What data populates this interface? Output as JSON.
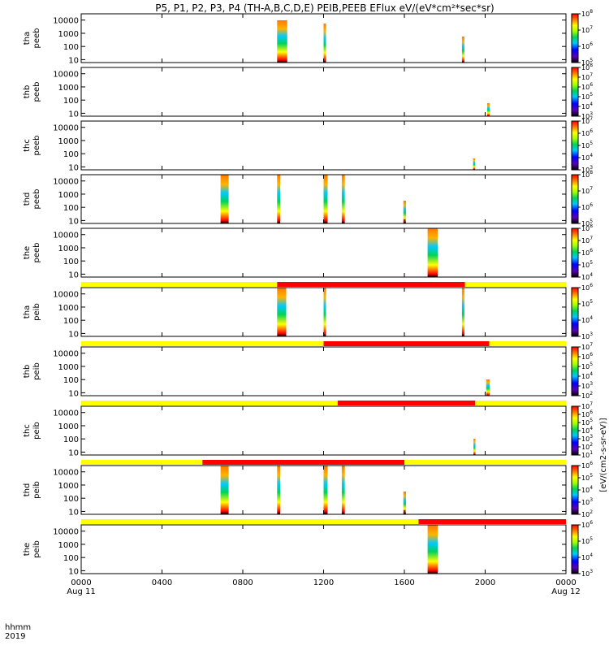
{
  "chart_data": {
    "type": "heatmap",
    "title": "P5, P1, P2, P3, P4 (TH-A,B,C,D,E) PEIB,PEEB EFlux eV/(eV*cm²*sec*sr)",
    "x_axis": {
      "label_line1": "hhmm",
      "label_line2": "2019",
      "range_hours": [
        0,
        24
      ],
      "ticks": [
        {
          "hour": 0,
          "label": "0000",
          "sublabel": "Aug 11"
        },
        {
          "hour": 4,
          "label": "0400",
          "sublabel": ""
        },
        {
          "hour": 8,
          "label": "0800",
          "sublabel": ""
        },
        {
          "hour": 12,
          "label": "1200",
          "sublabel": ""
        },
        {
          "hour": 16,
          "label": "1600",
          "sublabel": ""
        },
        {
          "hour": 20,
          "label": "2000",
          "sublabel": ""
        },
        {
          "hour": 24,
          "label": "0000",
          "sublabel": "Aug 12"
        }
      ]
    },
    "y_axis": {
      "scale": "log",
      "range_eV": [
        6,
        30000
      ],
      "ticks": [
        {
          "value": 10,
          "label": "10"
        },
        {
          "value": 100,
          "label": "100"
        },
        {
          "value": 1000,
          "label": "1000"
        },
        {
          "value": 10000,
          "label": "10000"
        }
      ]
    },
    "colorbar_unit": "[eV/(cm2-s-sr-eV)]",
    "panels": [
      {
        "probe": "tha",
        "species": "peeb",
        "cbar_min_exp": 5,
        "cbar_max_exp": 8,
        "bursts": [
          {
            "start": 9.7,
            "end": 10.2,
            "hi": 26
          },
          {
            "start": 12.0,
            "end": 12.12,
            "hi": 24
          },
          {
            "start": 18.85,
            "end": 18.97,
            "hi": 16
          }
        ]
      },
      {
        "probe": "thb",
        "species": "peeb",
        "cbar_min_exp": 3,
        "cbar_max_exp": 8,
        "bursts": [
          {
            "start": 20.1,
            "end": 20.22,
            "hi": 8
          }
        ]
      },
      {
        "probe": "thc",
        "species": "peeb",
        "cbar_min_exp": 3,
        "cbar_max_exp": 7,
        "bursts": [
          {
            "start": 19.4,
            "end": 19.5,
            "hi": 7
          }
        ]
      },
      {
        "probe": "thd",
        "species": "peeb",
        "cbar_min_exp": 5,
        "cbar_max_exp": 8,
        "bursts": [
          {
            "start": 6.9,
            "end": 7.3,
            "hi": 30
          },
          {
            "start": 9.7,
            "end": 9.85,
            "hi": 30
          },
          {
            "start": 12.0,
            "end": 12.2,
            "hi": 30
          },
          {
            "start": 12.9,
            "end": 13.05,
            "hi": 30
          },
          {
            "start": 15.95,
            "end": 16.08,
            "hi": 14
          }
        ]
      },
      {
        "probe": "the",
        "species": "peeb",
        "cbar_min_exp": 4,
        "cbar_max_exp": 8,
        "bursts": [
          {
            "start": 17.15,
            "end": 17.65,
            "hi": 30
          }
        ]
      },
      {
        "probe": "tha",
        "species": "peib",
        "cbar_min_exp": 3,
        "cbar_max_exp": 6,
        "bursts": [
          {
            "start": 9.7,
            "end": 10.15,
            "hi": 30
          },
          {
            "start": 12.0,
            "end": 12.12,
            "hi": 30
          },
          {
            "start": 18.85,
            "end": 18.97,
            "hi": 30
          }
        ],
        "mode_segments": [
          {
            "start": 0,
            "end": 9.7,
            "mode": "slow"
          },
          {
            "start": 9.7,
            "end": 19.0,
            "mode": "fast"
          },
          {
            "start": 19.0,
            "end": 24,
            "mode": "slow"
          }
        ]
      },
      {
        "probe": "thb",
        "species": "peib",
        "cbar_min_exp": 2,
        "cbar_max_exp": 7,
        "bursts": [
          {
            "start": 20.05,
            "end": 20.22,
            "hi": 10
          }
        ],
        "mode_segments": [
          {
            "start": 0,
            "end": 12.0,
            "mode": "slow"
          },
          {
            "start": 12.0,
            "end": 20.2,
            "mode": "fast"
          },
          {
            "start": 20.2,
            "end": 24,
            "mode": "slow"
          }
        ]
      },
      {
        "probe": "thc",
        "species": "peib",
        "cbar_min_exp": 1,
        "cbar_max_exp": 7,
        "bursts": [
          {
            "start": 19.42,
            "end": 19.52,
            "hi": 10
          }
        ],
        "mode_segments": [
          {
            "start": 0,
            "end": 12.7,
            "mode": "slow"
          },
          {
            "start": 12.7,
            "end": 19.5,
            "mode": "fast"
          },
          {
            "start": 19.5,
            "end": 24,
            "mode": "slow"
          }
        ]
      },
      {
        "probe": "thd",
        "species": "peib",
        "cbar_min_exp": 2,
        "cbar_max_exp": 6,
        "bursts": [
          {
            "start": 6.9,
            "end": 7.3,
            "hi": 30
          },
          {
            "start": 9.7,
            "end": 9.85,
            "hi": 30
          },
          {
            "start": 12.0,
            "end": 12.2,
            "hi": 30
          },
          {
            "start": 12.9,
            "end": 13.05,
            "hi": 30
          },
          {
            "start": 15.95,
            "end": 16.08,
            "hi": 14
          }
        ],
        "mode_segments": [
          {
            "start": 0,
            "end": 6.0,
            "mode": "slow"
          },
          {
            "start": 6.0,
            "end": 16.0,
            "mode": "fast"
          },
          {
            "start": 16.0,
            "end": 24,
            "mode": "slow"
          }
        ]
      },
      {
        "probe": "the",
        "species": "peib",
        "cbar_min_exp": 3,
        "cbar_max_exp": 6,
        "bursts": [
          {
            "start": 17.15,
            "end": 17.65,
            "hi": 30
          }
        ],
        "mode_segments": [
          {
            "start": 0,
            "end": 16.7,
            "mode": "slow"
          },
          {
            "start": 16.7,
            "end": 24,
            "mode": "fast"
          }
        ]
      }
    ],
    "mode_colors": {
      "slow": "#ffff00",
      "fast": "#ff0000"
    }
  }
}
